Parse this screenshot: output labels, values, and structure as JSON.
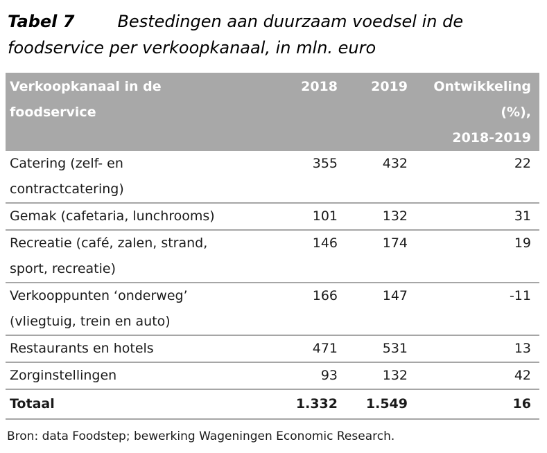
{
  "caption": {
    "label": "Tabel 7",
    "text": "Bestedingen aan duurzaam voedsel in de foodservice per verkoopkanaal, in mln. euro"
  },
  "table": {
    "columns": [
      "Verkoopkanaal in de\nfoodservice",
      "2018",
      "2019",
      "Ontwikkeling\n(%),\n2018-2019"
    ],
    "rows": [
      {
        "channel": "Catering (zelf- en\ncontractcatering)",
        "y2018": "355",
        "y2019": "432",
        "development": "22"
      },
      {
        "channel": "Gemak (cafetaria, lunchrooms)",
        "y2018": "101",
        "y2019": "132",
        "development": "31"
      },
      {
        "channel": "Recreatie (café, zalen, strand,\nsport, recreatie)",
        "y2018": "146",
        "y2019": "174",
        "development": "19"
      },
      {
        "channel": "Verkooppunten ‘onderweg’\n(vliegtuig, trein en auto)",
        "y2018": "166",
        "y2019": "147",
        "development": "-11"
      },
      {
        "channel": "Restaurants en hotels",
        "y2018": "471",
        "y2019": "531",
        "development": "13"
      },
      {
        "channel": "Zorginstellingen",
        "y2018": "93",
        "y2019": "132",
        "development": "42"
      }
    ],
    "total": {
      "channel": "Totaal",
      "y2018": "1.332",
      "y2019": "1.549",
      "development": "16"
    }
  },
  "source": "Bron: data Foodstep; bewerking Wageningen Economic Research.",
  "colors": {
    "header_bg": "#a8a8a8",
    "header_text": "#ffffff",
    "row_line": "#a6a6a6",
    "body_text": "#1a1a1a"
  }
}
